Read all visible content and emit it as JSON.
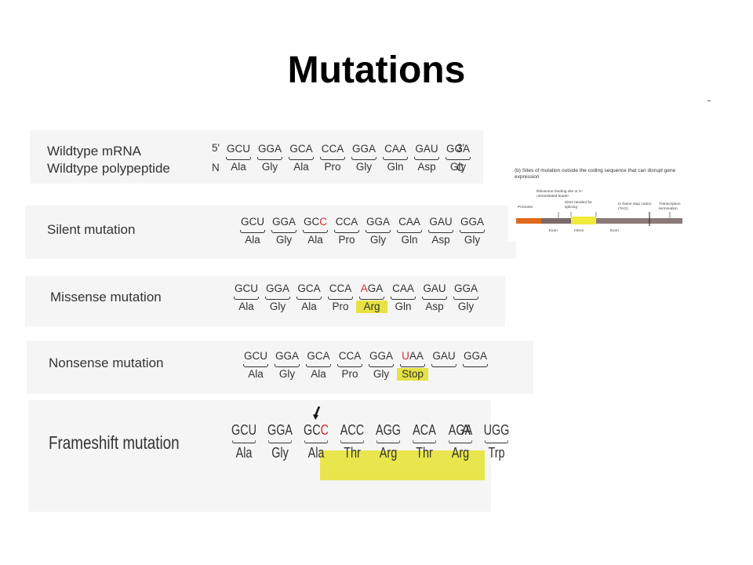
{
  "title": "Mutations",
  "rows": {
    "wildtype": {
      "label1": "Wildtype mRNA",
      "label2": "Wildtype polypeptide",
      "five_prime": "5'",
      "three_prime": "3'",
      "n_term": "N",
      "c_term": "C",
      "codons": [
        "GCU",
        "GGA",
        "GCA",
        "CCA",
        "GGA",
        "CAA",
        "GAU",
        "GGA"
      ],
      "aminos": [
        "Ala",
        "Gly",
        "Ala",
        "Pro",
        "Gly",
        "Gln",
        "Asp",
        "Gly"
      ]
    },
    "silent": {
      "label": "Silent mutation",
      "codons": [
        "GCU",
        "GGA",
        "GC",
        "CCA",
        "GGA",
        "CAA",
        "GAU",
        "GGA"
      ],
      "mutated_base": "C",
      "mutated_codon_index": 2,
      "aminos": [
        "Ala",
        "Gly",
        "Ala",
        "Pro",
        "Gly",
        "Gln",
        "Asp",
        "Gly"
      ]
    },
    "missense": {
      "label": "Missense mutation",
      "codons": [
        "GCU",
        "GGA",
        "GCA",
        "CCA",
        "GA",
        "CAA",
        "GAU",
        "GGA"
      ],
      "mutated_base": "A",
      "mutated_codon_index": 4,
      "aminos": [
        "Ala",
        "Gly",
        "Ala",
        "Pro",
        "Arg",
        "Gln",
        "Asp",
        "Gly"
      ],
      "highlight_index": 4
    },
    "nonsense": {
      "label": "Nonsense mutation",
      "codons": [
        "GCU",
        "GGA",
        "GCA",
        "CCA",
        "GGA",
        "AA",
        "GAU",
        "GGA"
      ],
      "mutated_base": "U",
      "mutated_codon_index": 5,
      "aminos": [
        "Ala",
        "Gly",
        "Ala",
        "Pro",
        "Gly",
        "Stop"
      ],
      "highlight_index": 5
    },
    "frameshift": {
      "label": "Frameshift mutation",
      "codons": [
        "GCU",
        "GGA",
        "GC",
        "ACC",
        "AGG",
        "ACA",
        "AGA",
        "UGG"
      ],
      "mutated_base": "C",
      "mutated_codon_index": 2,
      "trailing": "A",
      "aminos": [
        "Ala",
        "Gly",
        "Ala",
        "Thr",
        "Arg",
        "Thr",
        "Arg",
        "Trp"
      ]
    }
  },
  "inset": {
    "caption": "(b) Sites of mutation outside the coding sequence that can disrupt gene expression",
    "labels": {
      "ribosome": "Ribosome binding site or 5'-untranslated leader",
      "splice": "Sites needed for splicing",
      "inframe": "In frame stop codon (TAG)",
      "termination": "Transcription termination",
      "promoter": "Promoter",
      "exon1": "Exon",
      "intron": "Intron",
      "exon2": "Exon"
    }
  },
  "colors": {
    "highlight": "#e6e243",
    "mutation": "#d12a2a",
    "promoter": "#e06a1a",
    "intron": "#f2ea3c"
  }
}
